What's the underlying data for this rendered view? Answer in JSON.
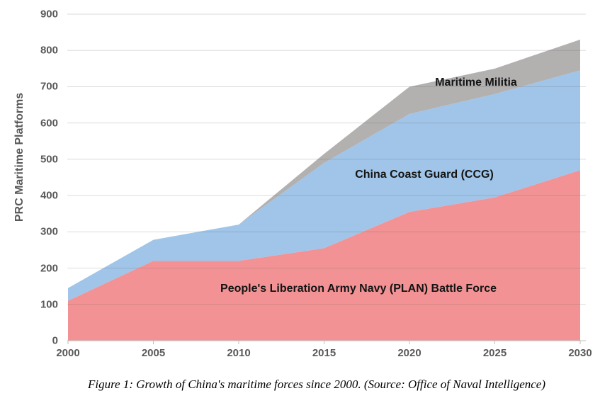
{
  "figure": {
    "caption": "Figure 1: Growth of China's maritime forces since 2000. (Source: Office of Naval Intelligence)"
  },
  "chart_data": {
    "type": "area",
    "stacked": true,
    "title": "",
    "xlabel": "",
    "ylabel": "PRC Maritime Platforms",
    "x": [
      2000,
      2005,
      2010,
      2015,
      2020,
      2025,
      2030
    ],
    "x_tick_labels": [
      "2000",
      "2005",
      "2010",
      "2015",
      "2020",
      "2025",
      "2030"
    ],
    "y_ticks": [
      0,
      100,
      200,
      300,
      400,
      500,
      600,
      700,
      800,
      900
    ],
    "ylim": [
      0,
      900
    ],
    "grid": "horizontal",
    "legend": "labels-inside-areas",
    "series": [
      {
        "id": "plan",
        "name": "People's Liberation Army Navy (PLAN) Battle Force",
        "color": "#F29294",
        "values": [
          110,
          220,
          220,
          255,
          355,
          395,
          470
        ]
      },
      {
        "id": "ccg",
        "name": "China Coast Guard (CCG)",
        "color": "#A0C5E8",
        "values": [
          35,
          58,
          100,
          235,
          270,
          285,
          275
        ]
      },
      {
        "id": "militia",
        "name": "Maritime Militia",
        "color": "#B3B0B0",
        "values": [
          0,
          0,
          0,
          25,
          75,
          70,
          85
        ]
      }
    ],
    "stacked_totals": [
      145,
      278,
      320,
      515,
      700,
      750,
      830
    ],
    "colors": {
      "axis_text": "#595959",
      "label_text": "#141414",
      "gridline": "#d9d9d9",
      "axis_line": "#c0bebe"
    }
  }
}
